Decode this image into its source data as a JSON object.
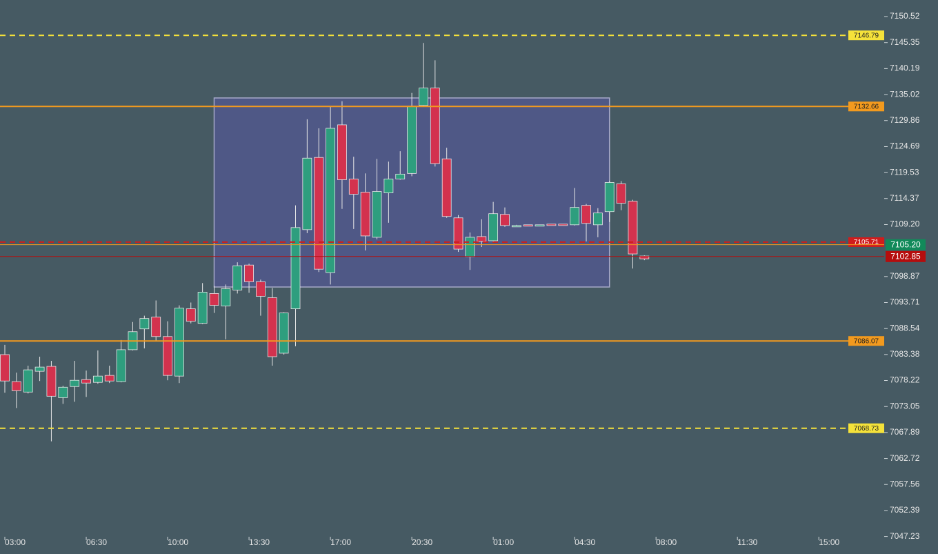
{
  "chart_data": {
    "type": "candlestick",
    "open": [
      7083.36,
      7077.99,
      7075.92,
      7080.05,
      7081.02,
      7074.81,
      7077.02,
      7078.4,
      7077.85,
      7079.23,
      7077.99,
      7084.33,
      7088.47,
      7090.81,
      7086.95,
      7079.09,
      7092.46,
      7089.57,
      7095.5,
      7093.02,
      7096.19,
      7101.15,
      7097.84,
      7094.67,
      7083.64,
      7092.46,
      7108.19,
      7122.53,
      7099.64,
      7129.01,
      7118.25,
      7115.63,
      7106.67,
      7115.49,
      7118.25,
      7119.36,
      7132.87,
      7136.32,
      7122.25,
      7110.53,
      7102.81,
      7106.81,
      7105.98,
      7111.22,
      7108.74,
      7109.15,
      7108.88,
      7109.29,
      7109.29,
      7109.15,
      7113.01,
      7109.15,
      7111.77,
      7117.29,
      7113.84,
      7102.95
    ],
    "high": [
      7085.29,
      7079.78,
      7081.16,
      7082.95,
      7082.12,
      7077.16,
      7082.12,
      7080.19,
      7084.19,
      7081.16,
      7086.26,
      7089.84,
      7091.09,
      7094.12,
      7089.98,
      7093.15,
      7093.71,
      7097.57,
      7097.02,
      7097.29,
      7101.7,
      7101.43,
      7098.26,
      7096.6,
      7091.78,
      7113.01,
      7130.11,
      7128.32,
      7132.73,
      7133.7,
      7122.67,
      7119.36,
      7122.25,
      7121.7,
      7123.77,
      7135.35,
      7145.28,
      7141.83,
      7124.46,
      7111.08,
      7107.63,
      7110.25,
      7113.7,
      7112.6,
      7109.15,
      7109.15,
      7109.15,
      7109.29,
      7109.29,
      7116.46,
      7113.29,
      7112.46,
      7117.84,
      7117.84,
      7114.12,
      7103.08
    ],
    "low": [
      7075.78,
      7072.75,
      7075.64,
      7078.12,
      7066.13,
      7073.57,
      7073.99,
      7074.95,
      7077.57,
      7077.71,
      7077.85,
      7084.19,
      7084.6,
      7085.98,
      7078.26,
      7077.71,
      7089.57,
      7089.43,
      7091.64,
      7086.4,
      7095.5,
      7095.64,
      7091.09,
      7081.16,
      7083.36,
      7085.02,
      7107.5,
      7099.77,
      7097.29,
      7112.32,
      7108.32,
      7104.05,
      7106.25,
      7109.56,
      7118.11,
      7118.8,
      7132.59,
      7120.73,
      7110.53,
      7103.77,
      7100.19,
      7104.74,
      7105.84,
      7108.74,
      7108.74,
      7108.88,
      7108.88,
      7109.01,
      7109.01,
      7109.01,
      7105.84,
      7106.67,
      7109.7,
      7112.05,
      7100.46,
      7102.12
    ],
    "close": [
      7078.12,
      7076.19,
      7080.33,
      7080.88,
      7075.09,
      7076.88,
      7078.26,
      7077.71,
      7079.09,
      7078.12,
      7084.33,
      7087.91,
      7090.53,
      7086.95,
      7079.23,
      7092.6,
      7089.98,
      7095.77,
      7093.15,
      7096.46,
      7101.01,
      7097.84,
      7094.95,
      7082.95,
      7091.64,
      7108.6,
      7122.39,
      7100.33,
      7128.32,
      7118.11,
      7115.22,
      7106.94,
      7115.77,
      7118.25,
      7119.22,
      7132.73,
      7136.32,
      7121.29,
      7110.81,
      7104.32,
      7106.67,
      7105.84,
      7111.36,
      7109.01,
      7109.01,
      7108.88,
      7109.15,
      7109.01,
      7109.01,
      7112.6,
      7109.43,
      7111.5,
      7117.56,
      7113.43,
      7103.36,
      7102.39
    ],
    "up_color": "#2e9e7e",
    "down_color": "#d3324e",
    "xticks": [
      "03:00",
      "06:30",
      "10:00",
      "13:30",
      "17:00",
      "20:30",
      "01:00",
      "04:30",
      "08:00",
      "11:30",
      "15:00"
    ],
    "ylim": [
      7046.9,
      7153.81
    ],
    "yticks": [
      7150.52,
      7145.35,
      7140.19,
      7135.02,
      7129.86,
      7124.69,
      7119.53,
      7114.37,
      {
        "value": 7109.2,
        "label": "7109.20"
      },
      7098.87,
      7093.71,
      7088.54,
      7083.38,
      7078.22,
      7073.05,
      7067.89,
      7062.72,
      7057.56,
      7052.39,
      7047.23
    ],
    "zone": {
      "high": 7134.35,
      "low": 7096.79,
      "start": 18,
      "end": 52
    },
    "levels": [
      {
        "value": 7146.79,
        "color": "#f5e23a",
        "dashed": true
      },
      {
        "value": 7132.66,
        "color": "#f39a1e",
        "dashed": false
      },
      {
        "value": 7105.71,
        "color": "#d01c1c",
        "dashed": true
      },
      {
        "value": 7086.07,
        "color": "#f39a1e",
        "dashed": false
      },
      {
        "value": 7068.73,
        "color": "#f5e23a",
        "dashed": true
      }
    ],
    "prices": [
      {
        "value": 7105.2,
        "label": "7105.20",
        "color": "#118a5a",
        "line": "#f39a1e"
      },
      {
        "value": 7102.85,
        "label": "7102.85",
        "color": "#b50d0d",
        "line": "#b50d0d"
      }
    ]
  }
}
